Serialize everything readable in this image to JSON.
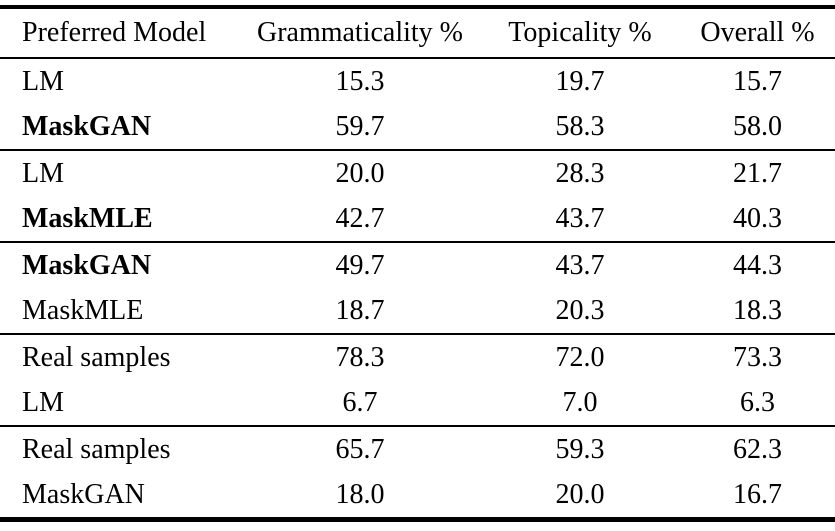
{
  "table": {
    "columns": [
      "Preferred Model",
      "Grammaticality %",
      "Topicality %",
      "Overall %"
    ],
    "groups": [
      {
        "rows": [
          {
            "model": "LM",
            "bold": false,
            "values": [
              "15.3",
              "19.7",
              "15.7"
            ]
          },
          {
            "model": "MaskGAN",
            "bold": true,
            "values": [
              "59.7",
              "58.3",
              "58.0"
            ]
          }
        ]
      },
      {
        "rows": [
          {
            "model": "LM",
            "bold": false,
            "values": [
              "20.0",
              "28.3",
              "21.7"
            ]
          },
          {
            "model": "MaskMLE",
            "bold": true,
            "values": [
              "42.7",
              "43.7",
              "40.3"
            ]
          }
        ]
      },
      {
        "rows": [
          {
            "model": "MaskGAN",
            "bold": true,
            "values": [
              "49.7",
              "43.7",
              "44.3"
            ]
          },
          {
            "model": "MaskMLE",
            "bold": false,
            "values": [
              "18.7",
              "20.3",
              "18.3"
            ]
          }
        ]
      },
      {
        "rows": [
          {
            "model": "Real samples",
            "bold": false,
            "values": [
              "78.3",
              "72.0",
              "73.3"
            ]
          },
          {
            "model": "LM",
            "bold": false,
            "values": [
              "6.7",
              "7.0",
              "6.3"
            ]
          }
        ]
      },
      {
        "rows": [
          {
            "model": "Real samples",
            "bold": false,
            "values": [
              "65.7",
              "59.3",
              "62.3"
            ]
          },
          {
            "model": "MaskGAN",
            "bold": false,
            "values": [
              "18.0",
              "20.0",
              "16.7"
            ]
          }
        ]
      }
    ],
    "colors": {
      "text": "#000000",
      "rule": "#000000",
      "background": "#ffffff"
    }
  }
}
